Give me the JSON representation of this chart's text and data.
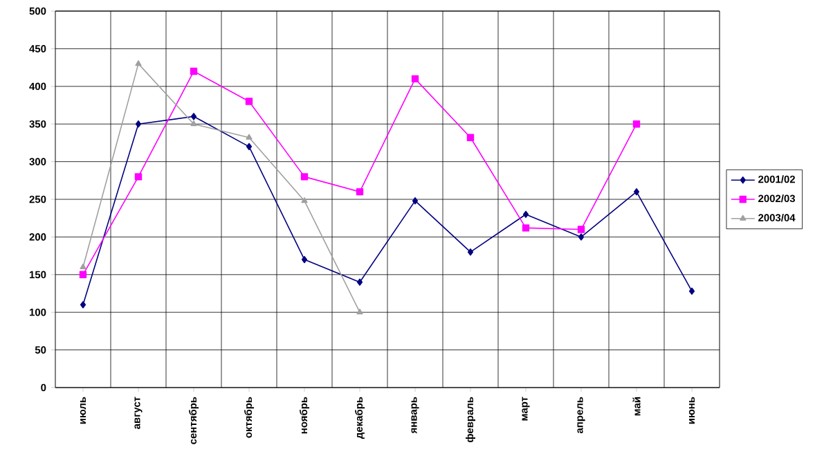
{
  "chart_data": {
    "type": "line",
    "categories": [
      "июль",
      "август",
      "сентябрь",
      "октябрь",
      "ноябрь",
      "декабрь",
      "январь",
      "февраль",
      "март",
      "апрель",
      "май",
      "июнь"
    ],
    "series": [
      {
        "name": "2001/02",
        "color": "#000080",
        "marker": "diamond",
        "values": [
          110,
          350,
          360,
          320,
          170,
          140,
          248,
          180,
          230,
          200,
          260,
          128
        ]
      },
      {
        "name": "2002/03",
        "color": "#ff00ff",
        "marker": "square",
        "values": [
          150,
          280,
          420,
          380,
          280,
          260,
          410,
          332,
          212,
          210,
          350,
          null
        ]
      },
      {
        "name": "2003/04",
        "color": "#a0a0a0",
        "marker": "triangle",
        "values": [
          160,
          430,
          350,
          332,
          248,
          100,
          null,
          null,
          null,
          null,
          null,
          null
        ]
      }
    ],
    "ylim": [
      0,
      500
    ],
    "yticks": [
      0,
      50,
      100,
      150,
      200,
      250,
      300,
      350,
      400,
      450,
      500
    ],
    "grid": true,
    "legend": "right"
  }
}
